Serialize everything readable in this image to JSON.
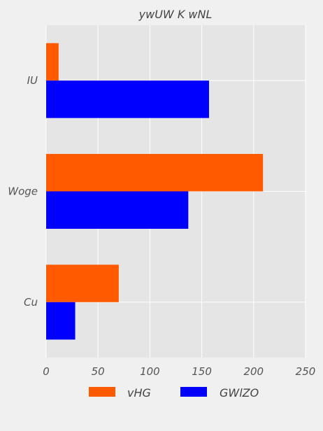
{
  "chart_data": {
    "type": "bar",
    "orientation": "horizontal",
    "title": "ywUW K  wNL",
    "xlabel": "",
    "ylabel": "",
    "categories": [
      "IU",
      "Woge",
      "Cu"
    ],
    "series": [
      {
        "name": "vHG",
        "values": [
          12,
          209,
          70
        ],
        "color": "#ff5a00"
      },
      {
        "name": "GWlZO",
        "values": [
          157,
          137,
          28
        ],
        "color": "#0000ff"
      }
    ],
    "xlim": [
      0,
      250
    ],
    "xticks": [
      0,
      50,
      100,
      150,
      200,
      250
    ],
    "grid": true,
    "legend_position": "bottom"
  }
}
